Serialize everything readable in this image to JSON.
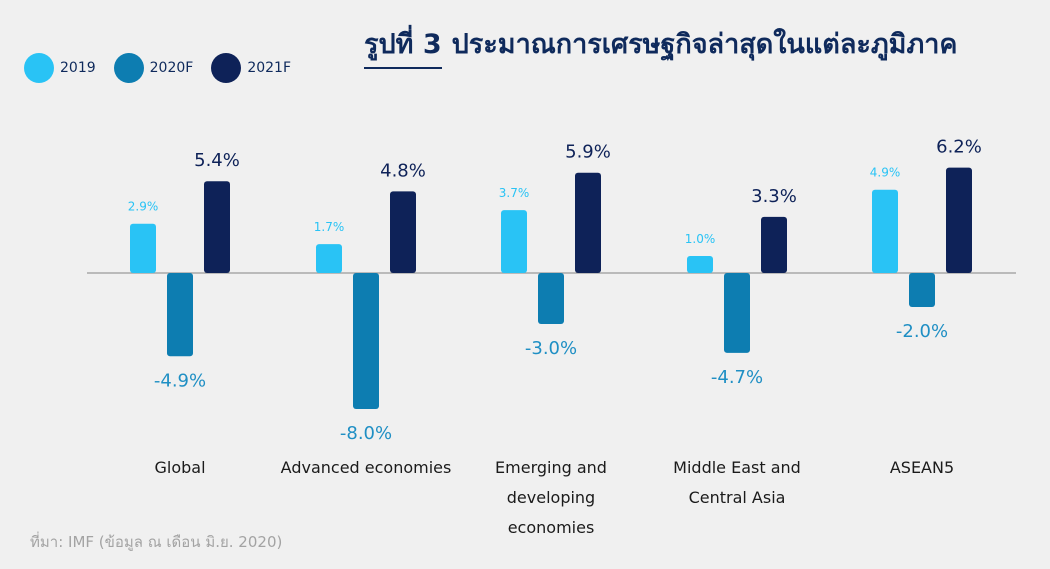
{
  "title": {
    "prefix": "รูปที่ 3",
    "main": "ประมาณการเศรษฐกิจล่าสุดในแต่ละภูมิภาค"
  },
  "legend": [
    {
      "label": "2019",
      "color": "#29c3f5"
    },
    {
      "label": "2020F",
      "color": "#0d7db1"
    },
    {
      "label": "2021F",
      "color": "#0e2258"
    }
  ],
  "source": "ที่มา: IMF (ข้อมูล ณ เดือน มิ.ย. 2020)",
  "chart_data": {
    "type": "bar",
    "title": "ประมาณการเศรษฐกิจล่าสุดในแต่ละภูมิภาค",
    "categories": [
      [
        "Global"
      ],
      [
        "Advanced economies"
      ],
      [
        "Emerging and",
        "developing",
        "economies"
      ],
      [
        "Middle East and",
        "Central Asia"
      ],
      [
        "ASEAN5"
      ]
    ],
    "series": [
      {
        "name": "2019",
        "values": [
          2.9,
          1.7,
          3.7,
          1.0,
          4.9
        ],
        "labels": [
          "2.9%",
          "1.7%",
          "3.7%",
          "1.0%",
          "4.9%"
        ],
        "color": "#29c3f5"
      },
      {
        "name": "2020F",
        "values": [
          -4.9,
          -8.0,
          -3.0,
          -4.7,
          -2.0
        ],
        "labels": [
          "-4.9%",
          "-8.0%",
          "-3.0%",
          "-4.7%",
          "-2.0%"
        ],
        "color": "#0d7db1"
      },
      {
        "name": "2021F",
        "values": [
          5.4,
          4.8,
          5.9,
          3.3,
          6.2
        ],
        "labels": [
          "5.4%",
          "4.8%",
          "5.9%",
          "3.3%",
          "6.2%"
        ],
        "color": "#0e2258"
      }
    ],
    "ylim": [
      -8.0,
      6.2
    ],
    "xlabel": "",
    "ylabel": "",
    "grid": false
  }
}
